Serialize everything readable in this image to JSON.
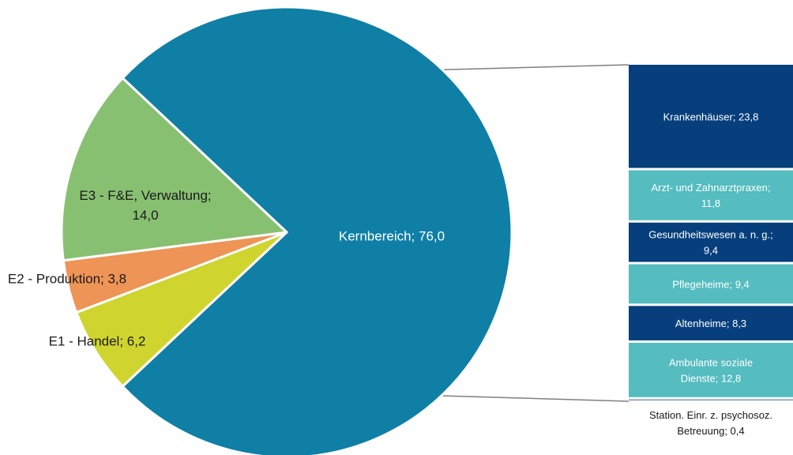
{
  "chart_data": {
    "type": "bar-of-pie",
    "pie": {
      "slices": [
        {
          "label": "Kernbereich; 76,0",
          "value": 76.0,
          "color": "#0f7fa6"
        },
        {
          "label": "E1 - Handel; 6,2",
          "value": 6.2,
          "color": "#cfd52e"
        },
        {
          "label": "E2 - Produktion; 3,8",
          "value": 3.8,
          "color": "#ee9456"
        },
        {
          "label_lines": [
            "E3 - F&E, Verwaltung;",
            "14,0"
          ],
          "value": 14.0,
          "color": "#88c072"
        }
      ]
    },
    "breakdown": {
      "of": "Kernbereich",
      "segments": [
        {
          "label_lines": [
            "Krankenhäuser;  23,8"
          ],
          "value": 23.8,
          "color": "#063f7c"
        },
        {
          "label_lines": [
            "Arzt- und Zahnarztpraxen;",
            "11,8"
          ],
          "value": 11.8,
          "color": "#55bcbf"
        },
        {
          "label_lines": [
            "Gesundheitswesen   a. n. g.;",
            "9,4"
          ],
          "value": 9.4,
          "color": "#063f7c"
        },
        {
          "label_lines": [
            "Pflegeheime;  9,4"
          ],
          "value": 9.4,
          "color": "#55bcbf"
        },
        {
          "label_lines": [
            "Altenheime;  8,3"
          ],
          "value": 8.3,
          "color": "#063f7c"
        },
        {
          "label_lines": [
            "Ambulante soziale",
            "Dienste;  12,8"
          ],
          "value": 12.8,
          "color": "#55bcbf"
        },
        {
          "label_lines": [
            "Station. Einr. z. psychosoz.",
            "Betreuung;  0,4"
          ],
          "value": 0.4,
          "color": "#063f7c"
        }
      ]
    },
    "connector_color": "#7f7f7f"
  }
}
